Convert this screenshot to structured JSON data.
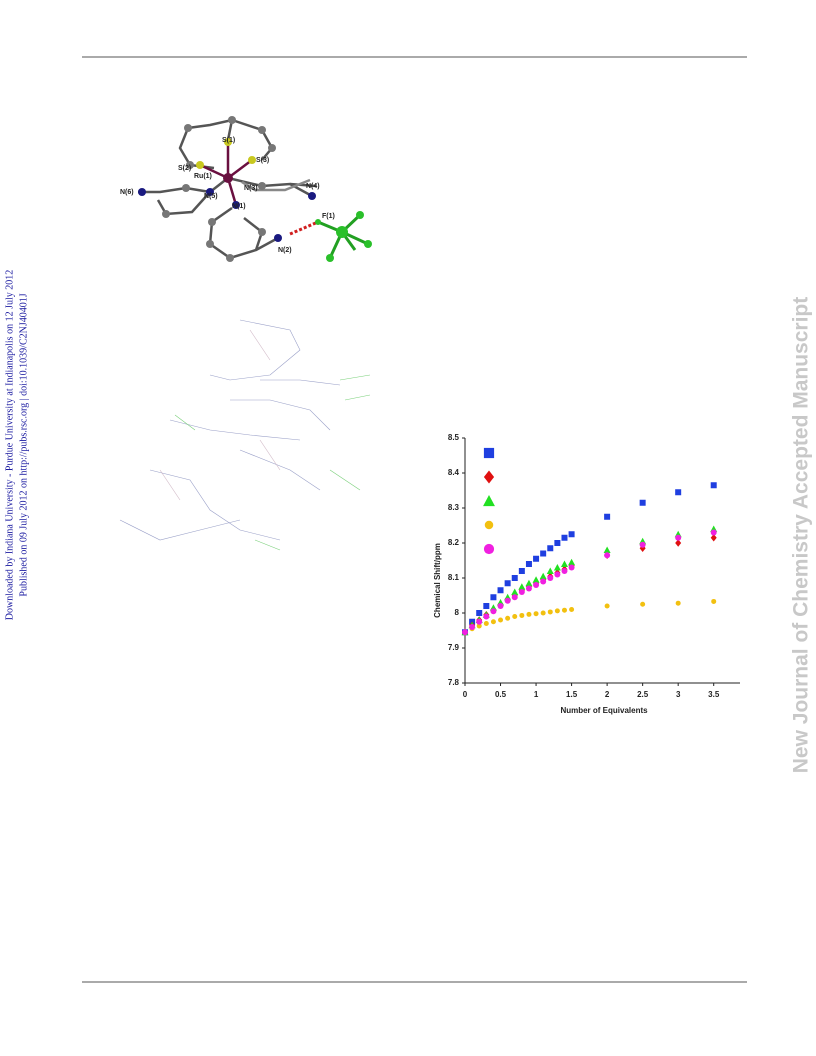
{
  "side_note": {
    "downloaded": "Downloaded by Indiana University - Purdue University at Indianapolis on 12 July 2012",
    "published": "Published on 09 July 2012 on http://pubs.rsc.org | doi:10.1039/C2NJ40401J"
  },
  "watermark": "New Journal of Chemistry Accepted Manuscript",
  "structure_labels": [
    "S(1)",
    "S(2)",
    "S(3)",
    "Ru(1)",
    "N(3)",
    "N(4)",
    "N(5)",
    "N(6)",
    "N(1)",
    "F(1)",
    "N(2)"
  ],
  "chart_data": {
    "type": "scatter",
    "y_label": "Chemical Shift/ppm",
    "x_label": "Number of Equivalents",
    "x": [
      0,
      0.1,
      0.2,
      0.3,
      0.4,
      0.5,
      0.6,
      0.7,
      0.8,
      0.9,
      1,
      1.1,
      1.2,
      1.3,
      1.4,
      1.5,
      2,
      2.5,
      3,
      3.5
    ],
    "series": [
      {
        "color": "#1f3fe0",
        "marker": "square",
        "values": [
          7.945,
          7.975,
          8.0,
          8.02,
          8.045,
          8.065,
          8.085,
          8.1,
          8.12,
          8.14,
          8.155,
          8.17,
          8.185,
          8.2,
          8.215,
          8.225,
          8.275,
          8.315,
          8.345,
          8.365
        ]
      },
      {
        "color": "#e01010",
        "marker": "diamond",
        "values": [
          7.945,
          7.965,
          7.98,
          7.995,
          8.01,
          8.025,
          8.04,
          8.05,
          8.065,
          8.075,
          8.085,
          8.095,
          8.105,
          8.115,
          8.125,
          8.135,
          8.165,
          8.185,
          8.2,
          8.215
        ]
      },
      {
        "color": "#22e022",
        "marker": "triangle",
        "values": [
          7.945,
          7.965,
          7.98,
          7.995,
          8.015,
          8.03,
          8.045,
          8.06,
          8.075,
          8.085,
          8.095,
          8.105,
          8.12,
          8.13,
          8.14,
          8.145,
          8.18,
          8.205,
          8.225,
          8.24
        ]
      },
      {
        "color": "#f2c010",
        "marker": "circle",
        "values": [
          7.945,
          7.955,
          7.963,
          7.97,
          7.975,
          7.98,
          7.985,
          7.99,
          7.993,
          7.996,
          7.998,
          8.0,
          8.003,
          8.006,
          8.008,
          8.01,
          8.02,
          8.025,
          8.028,
          8.033
        ]
      },
      {
        "color": "#f020e0",
        "marker": "octagon",
        "values": [
          7.945,
          7.96,
          7.975,
          7.99,
          8.005,
          8.02,
          8.035,
          8.045,
          8.06,
          8.07,
          8.08,
          8.09,
          8.1,
          8.11,
          8.12,
          8.13,
          8.165,
          8.195,
          8.215,
          8.23
        ]
      }
    ],
    "xlim": [
      0,
      3.87
    ],
    "ylim": [
      7.8,
      8.5
    ],
    "xticks": [
      0,
      0.5,
      1,
      1.5,
      2,
      2.5,
      3,
      3.5
    ],
    "yticks": [
      7.8,
      7.9,
      8,
      8.1,
      8.2,
      8.3,
      8.4,
      8.5
    ]
  }
}
